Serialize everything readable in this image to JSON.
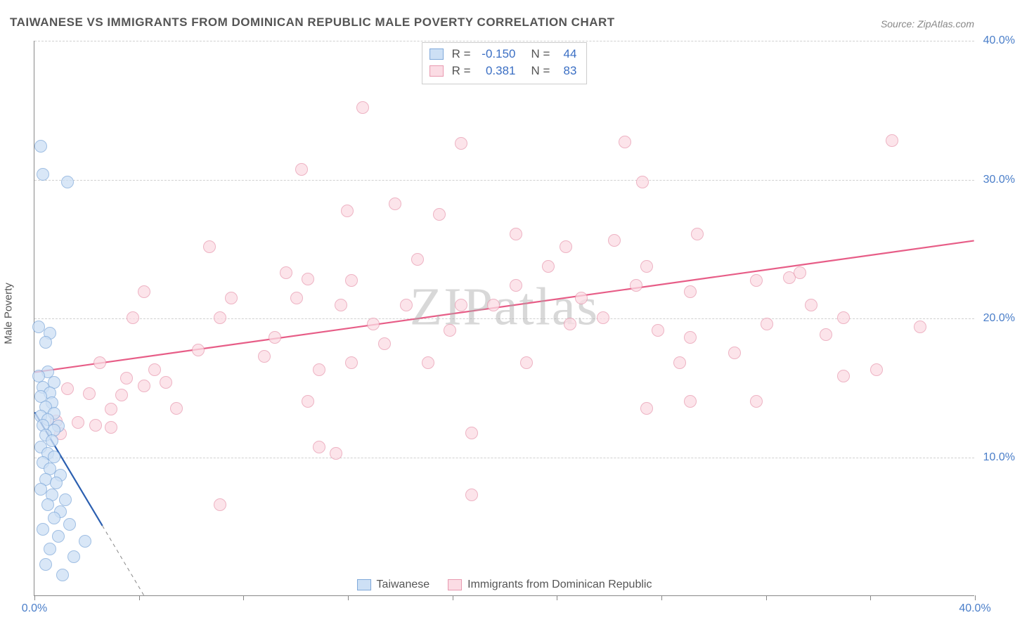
{
  "title": "TAIWANESE VS IMMIGRANTS FROM DOMINICAN REPUBLIC MALE POVERTY CORRELATION CHART",
  "source": "Source: ZipAtlas.com",
  "watermark": "ZIPatlas",
  "ylabel": "Male Poverty",
  "chart": {
    "type": "scatter",
    "xlim": [
      0,
      43
    ],
    "ylim": [
      0,
      43
    ],
    "x_ticks": [
      0,
      4.78,
      9.56,
      14.33,
      19.11,
      23.89,
      28.67,
      33.44,
      38.22,
      43
    ],
    "x_tick_labels": {
      "0": "0.0%",
      "43": "40.0%"
    },
    "y_gridlines": [
      10.75,
      21.5,
      32.25,
      43
    ],
    "y_tick_labels": {
      "10.75": "10.0%",
      "21.5": "20.0%",
      "32.25": "30.0%",
      "43": "40.0%"
    },
    "background_color": "#ffffff",
    "grid_color": "#d0d0d0",
    "axis_color": "#888888",
    "marker_radius": 9,
    "marker_stroke_width": 1.4,
    "series": [
      {
        "name": "Taiwanese",
        "marker_fill": "#cde0f5",
        "marker_stroke": "#7fa9da",
        "fill_opacity": 0.75,
        "R": "-0.150",
        "N": "44",
        "trend": {
          "x1": 0,
          "y1": 14.2,
          "x2": 5.0,
          "y2": 0,
          "color": "#2b5fb0",
          "width": 2.2,
          "dash_from_x": 3.1
        },
        "points": [
          [
            0.3,
            34.8
          ],
          [
            0.4,
            32.6
          ],
          [
            1.5,
            32.0
          ],
          [
            0.2,
            20.8
          ],
          [
            0.7,
            20.3
          ],
          [
            0.5,
            19.6
          ],
          [
            0.6,
            17.3
          ],
          [
            0.2,
            17.0
          ],
          [
            0.9,
            16.5
          ],
          [
            0.4,
            16.1
          ],
          [
            0.7,
            15.7
          ],
          [
            0.3,
            15.4
          ],
          [
            0.8,
            14.9
          ],
          [
            0.5,
            14.6
          ],
          [
            0.9,
            14.1
          ],
          [
            0.3,
            13.9
          ],
          [
            0.6,
            13.6
          ],
          [
            0.4,
            13.2
          ],
          [
            1.1,
            13.1
          ],
          [
            0.9,
            12.8
          ],
          [
            0.5,
            12.4
          ],
          [
            0.8,
            12.0
          ],
          [
            0.3,
            11.5
          ],
          [
            0.6,
            11.0
          ],
          [
            0.9,
            10.7
          ],
          [
            0.4,
            10.3
          ],
          [
            0.7,
            9.8
          ],
          [
            1.2,
            9.3
          ],
          [
            0.5,
            9.0
          ],
          [
            1.0,
            8.7
          ],
          [
            0.3,
            8.2
          ],
          [
            0.8,
            7.8
          ],
          [
            1.4,
            7.4
          ],
          [
            0.6,
            7.0
          ],
          [
            1.2,
            6.5
          ],
          [
            0.9,
            6.0
          ],
          [
            1.6,
            5.5
          ],
          [
            0.4,
            5.1
          ],
          [
            1.1,
            4.6
          ],
          [
            2.3,
            4.2
          ],
          [
            0.7,
            3.6
          ],
          [
            1.8,
            3.0
          ],
          [
            0.5,
            2.4
          ],
          [
            1.3,
            1.6
          ]
        ]
      },
      {
        "name": "Immigrants from Dominican Republic",
        "marker_fill": "#fbdce4",
        "marker_stroke": "#e89ab0",
        "fill_opacity": 0.75,
        "R": "0.381",
        "N": "83",
        "trend": {
          "x1": 0,
          "y1": 17.3,
          "x2": 43,
          "y2": 27.5,
          "color": "#e75d87",
          "width": 2.2
        },
        "points": [
          [
            15.0,
            37.8
          ],
          [
            19.5,
            35.0
          ],
          [
            27.0,
            35.1
          ],
          [
            39.2,
            35.2
          ],
          [
            12.2,
            33.0
          ],
          [
            27.8,
            32.0
          ],
          [
            16.5,
            30.3
          ],
          [
            14.3,
            29.8
          ],
          [
            18.5,
            29.5
          ],
          [
            8.0,
            27.0
          ],
          [
            11.5,
            25.0
          ],
          [
            22.0,
            28.0
          ],
          [
            24.3,
            27.0
          ],
          [
            30.3,
            28.0
          ],
          [
            26.5,
            27.5
          ],
          [
            12.5,
            24.5
          ],
          [
            14.5,
            24.4
          ],
          [
            22.0,
            24.0
          ],
          [
            25.0,
            23.0
          ],
          [
            27.5,
            24.0
          ],
          [
            28.0,
            25.5
          ],
          [
            33.0,
            24.4
          ],
          [
            34.5,
            24.6
          ],
          [
            30.0,
            23.5
          ],
          [
            5.0,
            23.5
          ],
          [
            8.5,
            21.5
          ],
          [
            12.0,
            23.0
          ],
          [
            14.0,
            22.5
          ],
          [
            17.0,
            22.5
          ],
          [
            19.5,
            22.5
          ],
          [
            21.0,
            22.5
          ],
          [
            35.5,
            22.5
          ],
          [
            37.0,
            21.5
          ],
          [
            33.5,
            21.0
          ],
          [
            28.5,
            20.5
          ],
          [
            24.5,
            21.0
          ],
          [
            40.5,
            20.8
          ],
          [
            36.2,
            20.2
          ],
          [
            4.5,
            21.5
          ],
          [
            7.5,
            19.0
          ],
          [
            3.0,
            18.0
          ],
          [
            5.5,
            17.5
          ],
          [
            10.5,
            18.5
          ],
          [
            13.0,
            17.5
          ],
          [
            14.5,
            18.0
          ],
          [
            18.0,
            18.0
          ],
          [
            22.5,
            18.0
          ],
          [
            30.0,
            20.0
          ],
          [
            37.0,
            17.0
          ],
          [
            38.5,
            17.5
          ],
          [
            5.0,
            16.2
          ],
          [
            1.5,
            16.0
          ],
          [
            2.5,
            15.6
          ],
          [
            4.0,
            15.5
          ],
          [
            3.5,
            14.4
          ],
          [
            6.5,
            14.5
          ],
          [
            12.5,
            15.0
          ],
          [
            33.0,
            15.0
          ],
          [
            30.0,
            15.0
          ],
          [
            28.0,
            14.5
          ],
          [
            1.0,
            13.5
          ],
          [
            2.0,
            13.4
          ],
          [
            2.8,
            13.2
          ],
          [
            3.5,
            13.0
          ],
          [
            1.2,
            12.5
          ],
          [
            20.0,
            12.6
          ],
          [
            13.0,
            11.5
          ],
          [
            13.8,
            11.0
          ],
          [
            8.5,
            7.0
          ],
          [
            20.0,
            7.8
          ],
          [
            4.2,
            16.8
          ],
          [
            6.0,
            16.5
          ],
          [
            16.0,
            19.5
          ],
          [
            26.0,
            21.5
          ],
          [
            32.0,
            18.8
          ],
          [
            29.5,
            18.0
          ],
          [
            11.0,
            20.0
          ],
          [
            9.0,
            23.0
          ],
          [
            35.0,
            25.0
          ],
          [
            23.5,
            25.5
          ],
          [
            17.5,
            26.0
          ],
          [
            15.5,
            21.0
          ],
          [
            19.0,
            20.5
          ]
        ]
      }
    ]
  },
  "legend_top": {
    "rows": [
      {
        "swatch_fill": "#cde0f5",
        "swatch_stroke": "#7fa9da",
        "r_label": "R =",
        "r_val": "-0.150",
        "n_label": "N =",
        "n_val": "44"
      },
      {
        "swatch_fill": "#fbdce4",
        "swatch_stroke": "#e89ab0",
        "r_label": "R =",
        "r_val": "0.381",
        "n_label": "N =",
        "n_val": "83"
      }
    ]
  },
  "legend_bottom": {
    "items": [
      {
        "swatch_fill": "#cde0f5",
        "swatch_stroke": "#7fa9da",
        "label": "Taiwanese"
      },
      {
        "swatch_fill": "#fbdce4",
        "swatch_stroke": "#e89ab0",
        "label": "Immigrants from Dominican Republic"
      }
    ]
  }
}
